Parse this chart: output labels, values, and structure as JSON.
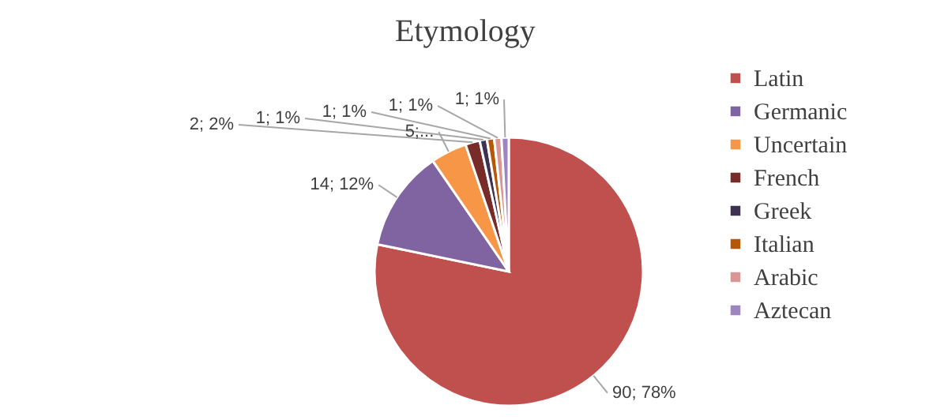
{
  "chart_data": {
    "type": "pie",
    "title": "Etymology",
    "categories": [
      "Latin",
      "Germanic",
      "Uncertain",
      "French",
      "Greek",
      "Italian",
      "Arabic",
      "Aztecan"
    ],
    "values": [
      90,
      14,
      5,
      2,
      1,
      1,
      1,
      1
    ],
    "colors": [
      "#c0504d",
      "#8064a2",
      "#f79646",
      "#772c2a",
      "#3f3151",
      "#b65708",
      "#d99694",
      "#9c85c0"
    ],
    "value_labels": [
      "90; 78%",
      "14; 12%",
      "5;...",
      "2; 2%",
      "1; 1%",
      "1; 1%",
      "1; 1%",
      "1; 1%"
    ],
    "legend": "right"
  }
}
